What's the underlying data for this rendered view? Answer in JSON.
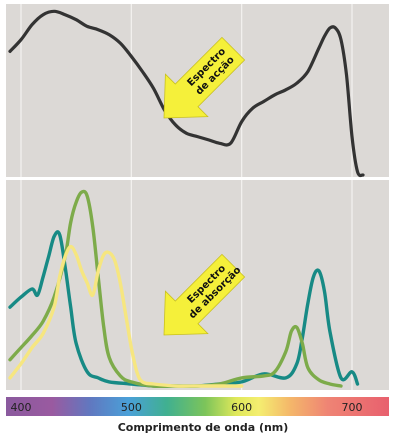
{
  "chart_data": [
    {
      "type": "line",
      "panel": "top",
      "annotation": [
        "Espectro",
        "de acção"
      ],
      "xlim": [
        390,
        720
      ],
      "ylim": [
        0,
        100
      ],
      "grid": true,
      "series": [
        {
          "color": "#333333",
          "x": [
            390,
            400,
            410,
            420,
            430,
            440,
            450,
            460,
            470,
            480,
            490,
            500,
            510,
            520,
            530,
            540,
            550,
            560,
            570,
            580,
            590,
            600,
            610,
            620,
            630,
            640,
            650,
            660,
            670,
            675,
            680,
            685,
            690,
            695,
            700,
            705,
            710
          ],
          "y": [
            74,
            81,
            90,
            96,
            98,
            96,
            93,
            89,
            87,
            84,
            79,
            71,
            62,
            52,
            39,
            30,
            25,
            23,
            21,
            19,
            19,
            32,
            40,
            44,
            48,
            51,
            55,
            62,
            76,
            83,
            88,
            88,
            81,
            60,
            23,
            2,
            0
          ]
        }
      ]
    },
    {
      "type": "line",
      "panel": "bottom",
      "annotation": [
        "Espectro",
        "de absorção"
      ],
      "xlim": [
        390,
        720
      ],
      "ylim": [
        0,
        100
      ],
      "grid": true,
      "series": [
        {
          "color": "#178a85",
          "x": [
            390,
            400,
            410,
            415,
            420,
            425,
            430,
            435,
            440,
            445,
            450,
            460,
            470,
            480,
            500,
            520,
            540,
            560,
            580,
            600,
            620,
            640,
            650,
            655,
            660,
            665,
            670,
            675,
            680,
            690,
            700,
            705
          ],
          "y": [
            40,
            45,
            49,
            46,
            55,
            65,
            75,
            76,
            60,
            40,
            22,
            8,
            5,
            3,
            2,
            1,
            1,
            1,
            2,
            3,
            7,
            5,
            12,
            25,
            42,
            55,
            58,
            48,
            28,
            5,
            8,
            2
          ]
        },
        {
          "color": "#7dab4a",
          "x": [
            390,
            400,
            410,
            420,
            430,
            440,
            445,
            450,
            455,
            460,
            465,
            470,
            475,
            480,
            490,
            500,
            520,
            540,
            560,
            580,
            600,
            620,
            630,
            640,
            645,
            650,
            655,
            660,
            670,
            680,
            690
          ],
          "y": [
            14,
            20,
            26,
            33,
            45,
            65,
            82,
            92,
            97,
            95,
            80,
            55,
            30,
            15,
            6,
            3,
            1,
            1,
            1,
            2,
            5,
            6,
            8,
            18,
            28,
            30,
            22,
            10,
            4,
            2,
            1
          ]
        },
        {
          "color": "#f6e680",
          "x": [
            390,
            400,
            410,
            420,
            430,
            435,
            440,
            445,
            450,
            455,
            460,
            465,
            470,
            475,
            480,
            485,
            490,
            495,
            500,
            505,
            510,
            520,
            540,
            560,
            580,
            600
          ],
          "y": [
            5,
            12,
            20,
            27,
            40,
            55,
            65,
            70,
            66,
            58,
            52,
            46,
            58,
            66,
            67,
            63,
            52,
            36,
            20,
            8,
            3,
            2,
            1,
            1,
            1,
            1
          ]
        }
      ]
    }
  ],
  "x_axis": {
    "ticks": [
      {
        "value": 400,
        "label": "400"
      },
      {
        "value": 500,
        "label": "500"
      },
      {
        "value": 600,
        "label": "600"
      },
      {
        "value": 700,
        "label": "700"
      }
    ],
    "label": "Comprimento de onda (nm)"
  },
  "colors": {
    "panel_bg": "#dcd9d6",
    "arrow": "#f5f03a"
  }
}
